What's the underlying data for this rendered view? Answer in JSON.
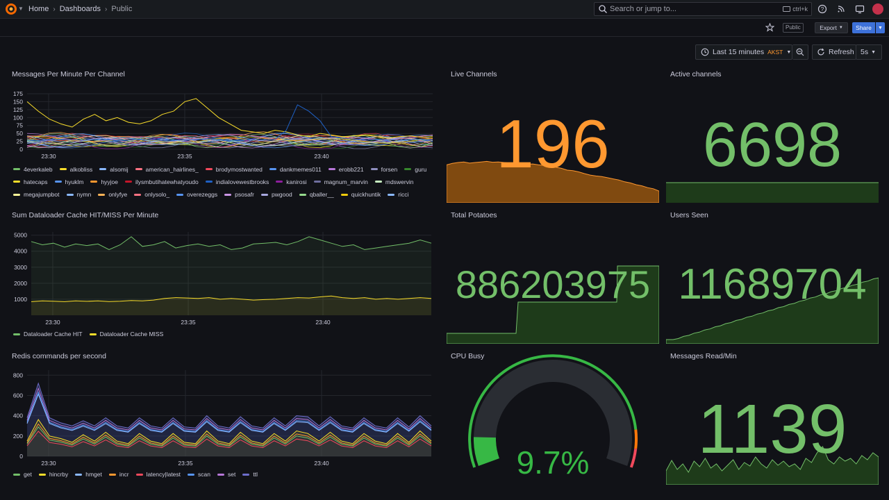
{
  "topbar": {
    "crumbs": [
      "Home",
      "Dashboards",
      "Public"
    ],
    "search_placeholder": "Search or jump to...",
    "search_shortcut": "ctrl+k",
    "icons": [
      "help-icon",
      "rss-icon",
      "kiosk-icon"
    ]
  },
  "toolbar": {
    "public_badge": "Public",
    "export_label": "Export",
    "share_label": "Share"
  },
  "timepicker": {
    "range_label": "Last 15 minutes",
    "tz_label": "AKST",
    "refresh_label": "Refresh",
    "interval_label": "5s"
  },
  "colors": {
    "bg": "#111217",
    "green": "#73bf69",
    "orange": "#ff9830",
    "yellow": "#fade2a",
    "blue": "#5794f2",
    "red": "#f2495c"
  },
  "panels": {
    "messages_per_minute": {
      "title": "Messages Per Minute Per Channel",
      "legend": [
        {
          "name": "4everkaleb",
          "color": "#73bf69"
        },
        {
          "name": "alkobliss",
          "color": "#fade2a"
        },
        {
          "name": "alsomij",
          "color": "#8ab8ff"
        },
        {
          "name": "american_hairlines_",
          "color": "#ff7383"
        },
        {
          "name": "brodymostwanted",
          "color": "#f2495c"
        },
        {
          "name": "dankmemes011",
          "color": "#5794f2"
        },
        {
          "name": "erobb221",
          "color": "#b877d9"
        },
        {
          "name": "forsen",
          "color": "#8f8fbf"
        },
        {
          "name": "guru",
          "color": "#37872d"
        },
        {
          "name": "hatecaps",
          "color": "#fade2a"
        },
        {
          "name": "hyuklm",
          "color": "#5794f2"
        },
        {
          "name": "hyyjoe",
          "color": "#ff9830"
        },
        {
          "name": "ilysmbutihatewhatyoudo",
          "color": "#c4162a"
        },
        {
          "name": "indialovewestbrooks",
          "color": "#1f60c4"
        },
        {
          "name": "kanirosi",
          "color": "#8e1e9e"
        },
        {
          "name": "magnum_marvin",
          "color": "#6e6e9e"
        },
        {
          "name": "mdswervin",
          "color": "#c8f2c2"
        },
        {
          "name": "megajumpbot",
          "color": "#fff899"
        },
        {
          "name": "nymn",
          "color": "#8ab8ff"
        },
        {
          "name": "onlyfye",
          "color": "#ffb357"
        },
        {
          "name": "onlysolo_",
          "color": "#ff7383"
        },
        {
          "name": "overezeggs",
          "color": "#5794f2"
        },
        {
          "name": "psosafr",
          "color": "#ca95e5"
        },
        {
          "name": "pwgood",
          "color": "#a8a8e0"
        },
        {
          "name": "qballer__",
          "color": "#96d98d"
        },
        {
          "name": "quickhuntik",
          "color": "#f2cc0c"
        },
        {
          "name": "ricci",
          "color": "#8ab8ff"
        }
      ]
    },
    "live_channels": {
      "title": "Live Channels",
      "value": "196",
      "color": "#ff9830"
    },
    "active_channels": {
      "title": "Active channels",
      "value": "6698",
      "color": "#73bf69"
    },
    "cache": {
      "title": "Sum Dataloader Cache HIT/MISS Per Minute",
      "legend": [
        {
          "name": "Dataloader Cache HIT",
          "color": "#73bf69"
        },
        {
          "name": "Dataloader Cache MISS",
          "color": "#fade2a"
        }
      ]
    },
    "total_potatoes": {
      "title": "Total Potatoes",
      "value": "886203975",
      "color": "#73bf69"
    },
    "users_seen": {
      "title": "Users Seen",
      "value": "11689704",
      "color": "#73bf69"
    },
    "redis": {
      "title": "Redis commands per second",
      "legend": [
        {
          "name": "get",
          "color": "#73bf69"
        },
        {
          "name": "hincrby",
          "color": "#fade2a"
        },
        {
          "name": "hmget",
          "color": "#8ab8ff"
        },
        {
          "name": "incr",
          "color": "#ff9830"
        },
        {
          "name": "latency|latest",
          "color": "#f2495c"
        },
        {
          "name": "scan",
          "color": "#5794f2"
        },
        {
          "name": "set",
          "color": "#b877d9"
        },
        {
          "name": "ttl",
          "color": "#6e6ecc"
        }
      ]
    },
    "cpu_busy": {
      "title": "CPU Busy",
      "value": "9.7%",
      "gauge_fraction": 0.097
    },
    "messages_read": {
      "title": "Messages Read/Min",
      "value": "1139",
      "color": "#73bf69"
    }
  },
  "chart_data": [
    {
      "type": "line",
      "title": "Messages Per Minute Per Channel",
      "x_ticks": [
        "23:30",
        "23:35",
        "23:40"
      ],
      "y_ticks": [
        "0",
        "25",
        "50",
        "75",
        "100",
        "125",
        "150",
        "175"
      ],
      "ylim": [
        0,
        175
      ],
      "series_highlight": [
        {
          "name": "alkobliss",
          "values": [
            150,
            120,
            95,
            80,
            70,
            95,
            110,
            90,
            100,
            85,
            80,
            90,
            110,
            120,
            150,
            160,
            130,
            100,
            80,
            60,
            55,
            50,
            60,
            55,
            45,
            40,
            50,
            45,
            40,
            42,
            45,
            40,
            35,
            40,
            42,
            38,
            40
          ]
        },
        {
          "name": "indialovewestbrooks",
          "values": [
            30,
            28,
            30,
            32,
            30,
            29,
            31,
            30,
            28,
            30,
            32,
            30,
            28,
            30,
            29,
            31,
            33,
            30,
            28,
            30,
            29,
            30,
            31,
            60,
            140,
            120,
            90,
            40,
            35,
            32,
            30,
            31,
            30,
            29,
            30,
            31,
            30
          ]
        }
      ]
    },
    {
      "type": "line",
      "title": "Sum Dataloader Cache HIT/MISS Per Minute",
      "x_ticks": [
        "23:30",
        "23:35",
        "23:40"
      ],
      "y_ticks": [
        "1000",
        "2000",
        "3000",
        "4000",
        "5000"
      ],
      "ylim": [
        0,
        5200
      ],
      "series": [
        {
          "name": "Dataloader Cache HIT",
          "values": [
            4600,
            4400,
            4500,
            4250,
            4450,
            4350,
            4450,
            4100,
            4400,
            4900,
            4300,
            4400,
            4600,
            4200,
            4350,
            4450,
            4300,
            4400,
            4100,
            4200,
            4450,
            4500,
            4550,
            4400,
            4600,
            4900,
            4700,
            4500,
            4300,
            4400,
            4100,
            4200,
            4300,
            4400,
            4500,
            4700,
            4500
          ]
        },
        {
          "name": "Dataloader Cache MISS",
          "values": [
            850,
            900,
            880,
            850,
            900,
            870,
            900,
            860,
            880,
            920,
            900,
            950,
            1050,
            1100,
            1080,
            1050,
            1100,
            1000,
            1050,
            1000,
            950,
            980,
            1000,
            1050,
            1100,
            1080,
            1150,
            1200,
            1100,
            1050,
            1100,
            1000,
            1050,
            1000,
            1050,
            1100,
            1050
          ]
        }
      ]
    },
    {
      "type": "line",
      "title": "Redis commands per second",
      "x_ticks": [
        "23:30",
        "23:35",
        "23:40"
      ],
      "y_ticks": [
        "0",
        "200",
        "400",
        "600",
        "800"
      ],
      "ylim": [
        0,
        850
      ],
      "series": [
        {
          "name": "ttl",
          "values": [
            380,
            720,
            380,
            330,
            300,
            350,
            300,
            380,
            300,
            280,
            380,
            300,
            280,
            380,
            290,
            280,
            400,
            300,
            280,
            390,
            300,
            280,
            380,
            300,
            400,
            390,
            300,
            390,
            300,
            280,
            380,
            300,
            280,
            380,
            290,
            400,
            300
          ]
        },
        {
          "name": "get",
          "values": [
            120,
            290,
            160,
            140,
            110,
            170,
            120,
            190,
            120,
            100,
            180,
            120,
            100,
            180,
            110,
            100,
            200,
            120,
            100,
            190,
            120,
            100,
            180,
            120,
            200,
            180,
            120,
            190,
            120,
            100,
            180,
            120,
            100,
            180,
            110,
            200,
            120
          ]
        }
      ]
    }
  ]
}
